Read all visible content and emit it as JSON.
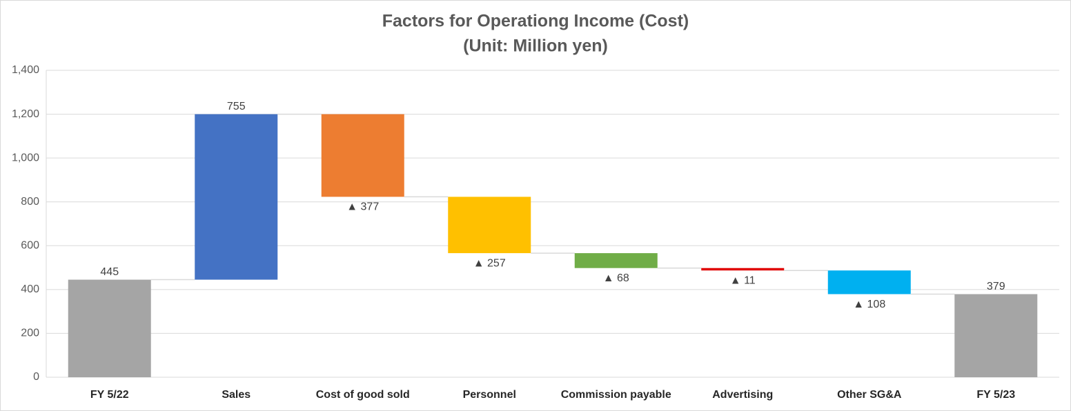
{
  "chart_data": {
    "type": "waterfall",
    "title": "Factors for Operationg Income (Cost)",
    "subtitle": "(Unit: Million yen)",
    "categories": [
      "FY 5/22",
      "Sales",
      "Cost of good sold",
      "Personnel",
      "Commission payable",
      "Advertising",
      "Other SG&A",
      "FY 5/23"
    ],
    "values": [
      445,
      755,
      -377,
      -257,
      -68,
      -11,
      -108,
      379
    ],
    "value_labels": [
      "445",
      "755",
      "▲ 377",
      "▲ 257",
      "▲ 68",
      "▲ 11",
      "▲ 108",
      "379"
    ],
    "measure": [
      "absolute",
      "relative",
      "relative",
      "relative",
      "relative",
      "relative",
      "relative",
      "absolute"
    ],
    "colors": [
      "#a5a5a5",
      "#4472c4",
      "#ed7d31",
      "#ffc000",
      "#70ad47",
      "#e00000",
      "#00b0f0",
      "#a5a5a5"
    ],
    "ylim": [
      0,
      1400
    ],
    "yticks": [
      0,
      200,
      400,
      600,
      800,
      {
        "value": 1000,
        "label": "1,000"
      },
      {
        "value": 1200,
        "label": "1,200"
      },
      {
        "value": 1400,
        "label": "1,400"
      }
    ],
    "grid": true
  }
}
